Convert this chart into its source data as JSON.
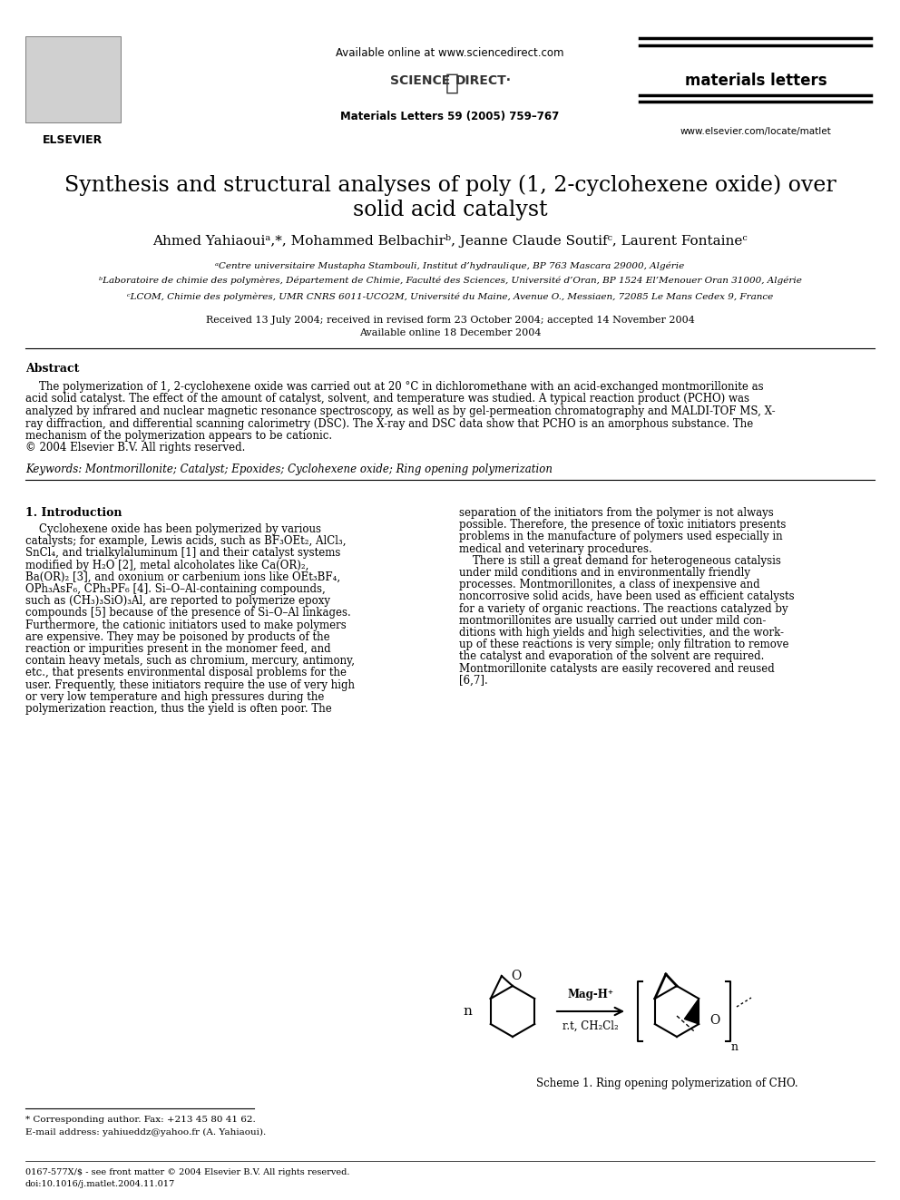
{
  "title_line1": "Synthesis and structural analyses of poly (1, 2-cyclohexene oxide) over",
  "title_line2": "solid acid catalyst",
  "authors": "Ahmed Yahiaouiᵃ,*, Mohammed Belbachirᵇ, Jeanne Claude Soutifᶜ, Laurent Fontaineᶜ",
  "affil_a": "ᵃCentre universitaire Mustapha Stambouli, Institut d’hydraulique, BP 763 Mascara 29000, Algérie",
  "affil_b": "ᵇLaboratoire de chimie des polymères, Département de Chimie, Faculté des Sciences, Université d’Oran, BP 1524 El’Menouer Oran 31000, Algérie",
  "affil_c": "ᶜLCOM, Chimie des polymères, UMR CNRS 6011-UCO2M, Université du Maine, Avenue O., Messiaen, 72085 Le Mans Cedex 9, France",
  "received": "Received 13 July 2004; received in revised form 23 October 2004; accepted 14 November 2004",
  "available": "Available online 18 December 2004",
  "journal_header": "Available online at www.sciencedirect.com",
  "journal_name": "materials letters",
  "journal_info": "Materials Letters 59 (2005) 759–767",
  "journal_url": "www.elsevier.com/locate/matlet",
  "elsevier": "ELSEVIER",
  "abstract_title": "Abstract",
  "keywords": "Keywords: Montmorillonite; Catalyst; Epoxides; Cyclohexene oxide; Ring opening polymerization",
  "section1_title": "1. Introduction",
  "scheme_caption": "Scheme 1. Ring opening polymerization of CHO.",
  "footnote_corresponding": "* Corresponding author. Fax: +213 45 80 41 62.",
  "footnote_email": "E-mail address: yahiueddz@yahoo.fr (A. Yahiaoui).",
  "footer_issn": "0167-577X/$ - see front matter © 2004 Elsevier B.V. All rights reserved.",
  "footer_doi": "doi:10.1016/j.matlet.2004.11.017",
  "bg_color": "#ffffff",
  "text_color": "#000000",
  "abstract_lines": [
    "    The polymerization of 1, 2-cyclohexene oxide was carried out at 20 °C in dichloromethane with an acid-exchanged montmorillonite as",
    "acid solid catalyst. The effect of the amount of catalyst, solvent, and temperature was studied. A typical reaction product (PCHO) was",
    "analyzed by infrared and nuclear magnetic resonance spectroscopy, as well as by gel-permeation chromatography and MALDI-TOF MS, X-",
    "ray diffraction, and differential scanning calorimetry (DSC). The X-ray and DSC data show that PCHO is an amorphous substance. The",
    "mechanism of the polymerization appears to be cationic.",
    "© 2004 Elsevier B.V. All rights reserved."
  ],
  "col1_lines": [
    "    Cyclohexene oxide has been polymerized by various",
    "catalysts; for example, Lewis acids, such as BF₃OEt₂, AlCl₃,",
    "SnCl₄, and trialkylaluminum [1] and their catalyst systems",
    "modified by H₂O [2], metal alcoholates like Ca(OR)₂,",
    "Ba(OR)₂ [3], and oxonium or carbenium ions like OEt₃BF₄,",
    "OPh₃AsF₆, CPh₃PF₆ [4]. Si–O–Al-containing compounds,",
    "such as (CH₃)₃SiO)₃Al, are reported to polymerize epoxy",
    "compounds [5] because of the presence of Si–O–Al linkages.",
    "Furthermore, the cationic initiators used to make polymers",
    "are expensive. They may be poisoned by products of the",
    "reaction or impurities present in the monomer feed, and",
    "contain heavy metals, such as chromium, mercury, antimony,",
    "etc., that presents environmental disposal problems for the",
    "user. Frequently, these initiators require the use of very high",
    "or very low temperature and high pressures during the",
    "polymerization reaction, thus the yield is often poor. The"
  ],
  "col2_lines": [
    "separation of the initiators from the polymer is not always",
    "possible. Therefore, the presence of toxic initiators presents",
    "problems in the manufacture of polymers used especially in",
    "medical and veterinary procedures.",
    "    There is still a great demand for heterogeneous catalysis",
    "under mild conditions and in environmentally friendly",
    "processes. Montmorillonites, a class of inexpensive and",
    "noncorrosive solid acids, have been used as efficient catalysts",
    "for a variety of organic reactions. The reactions catalyzed by",
    "montmorillonites are usually carried out under mild con-",
    "ditions with high yields and high selectivities, and the work-",
    "up of these reactions is very simple; only filtration to remove",
    "the catalyst and evaporation of the solvent are required.",
    "Montmorillonite catalysts are easily recovered and reused",
    "[6,7]."
  ]
}
